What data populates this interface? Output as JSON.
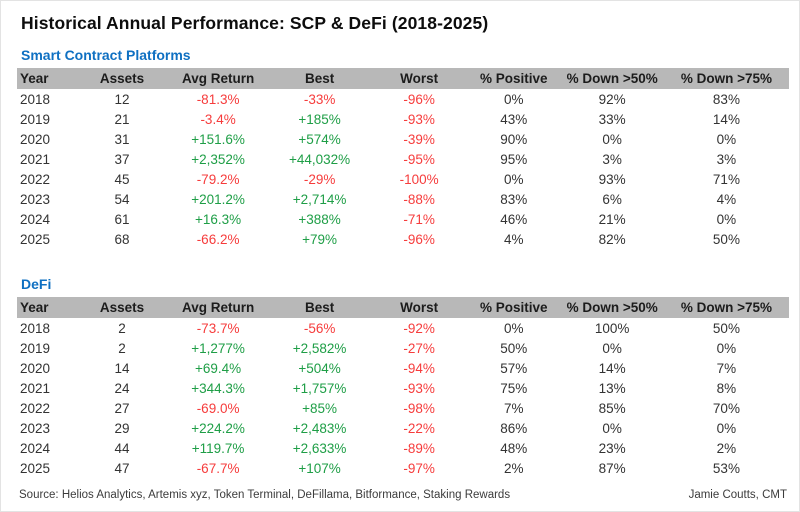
{
  "title": "Historical Annual Performance: SCP & DeFi (2018-2025)",
  "colors": {
    "positive_green": "#1e9e46",
    "negative_red": "#f63c3c",
    "section_blue": "#0f70c2",
    "header_gray": "#b8b8b8"
  },
  "chart_data": [
    {
      "type": "table",
      "title": "Smart Contract Platforms",
      "columns": [
        "Year",
        "Assets",
        "Avg Return",
        "Best",
        "Worst",
        "% Positive",
        "% Down >50%",
        "% Down >75%"
      ],
      "rows": [
        [
          "2018",
          "12",
          "-81.3%",
          "-33%",
          "-96%",
          "0%",
          "92%",
          "83%"
        ],
        [
          "2019",
          "21",
          "-3.4%",
          "+185%",
          "-93%",
          "43%",
          "33%",
          "14%"
        ],
        [
          "2020",
          "31",
          "+151.6%",
          "+574%",
          "-39%",
          "90%",
          "0%",
          "0%"
        ],
        [
          "2021",
          "37",
          "+2,352%",
          "+44,032%",
          "-95%",
          "95%",
          "3%",
          "3%"
        ],
        [
          "2022",
          "45",
          "-79.2%",
          "-29%",
          "-100%",
          "0%",
          "93%",
          "71%"
        ],
        [
          "2023",
          "54",
          "+201.2%",
          "+2,714%",
          "-88%",
          "83%",
          "6%",
          "4%"
        ],
        [
          "2024",
          "61",
          "+16.3%",
          "+388%",
          "-71%",
          "46%",
          "21%",
          "0%"
        ],
        [
          "2025",
          "68",
          "-66.2%",
          "+79%",
          "-96%",
          "4%",
          "82%",
          "50%"
        ]
      ]
    },
    {
      "type": "table",
      "title": "DeFi",
      "columns": [
        "Year",
        "Assets",
        "Avg Return",
        "Best",
        "Worst",
        "% Positive",
        "% Down >50%",
        "% Down >75%"
      ],
      "rows": [
        [
          "2018",
          "2",
          "-73.7%",
          "-56%",
          "-92%",
          "0%",
          "100%",
          "50%"
        ],
        [
          "2019",
          "2",
          "+1,277%",
          "+2,582%",
          "-27%",
          "50%",
          "0%",
          "0%"
        ],
        [
          "2020",
          "14",
          "+69.4%",
          "+504%",
          "-94%",
          "57%",
          "14%",
          "7%"
        ],
        [
          "2021",
          "24",
          "+344.3%",
          "+1,757%",
          "-93%",
          "75%",
          "13%",
          "8%"
        ],
        [
          "2022",
          "27",
          "-69.0%",
          "+85%",
          "-98%",
          "7%",
          "85%",
          "70%"
        ],
        [
          "2023",
          "29",
          "+224.2%",
          "+2,483%",
          "-22%",
          "86%",
          "0%",
          "0%"
        ],
        [
          "2024",
          "44",
          "+119.7%",
          "+2,633%",
          "-89%",
          "48%",
          "23%",
          "2%"
        ],
        [
          "2025",
          "47",
          "-67.7%",
          "+107%",
          "-97%",
          "2%",
          "87%",
          "53%"
        ]
      ]
    }
  ],
  "footer": {
    "source": "Source: Helios Analytics, Artemis xyz, Token Terminal, DeFillama, Bitformance, Staking Rewards",
    "credit": "Jamie Coutts, CMT"
  }
}
